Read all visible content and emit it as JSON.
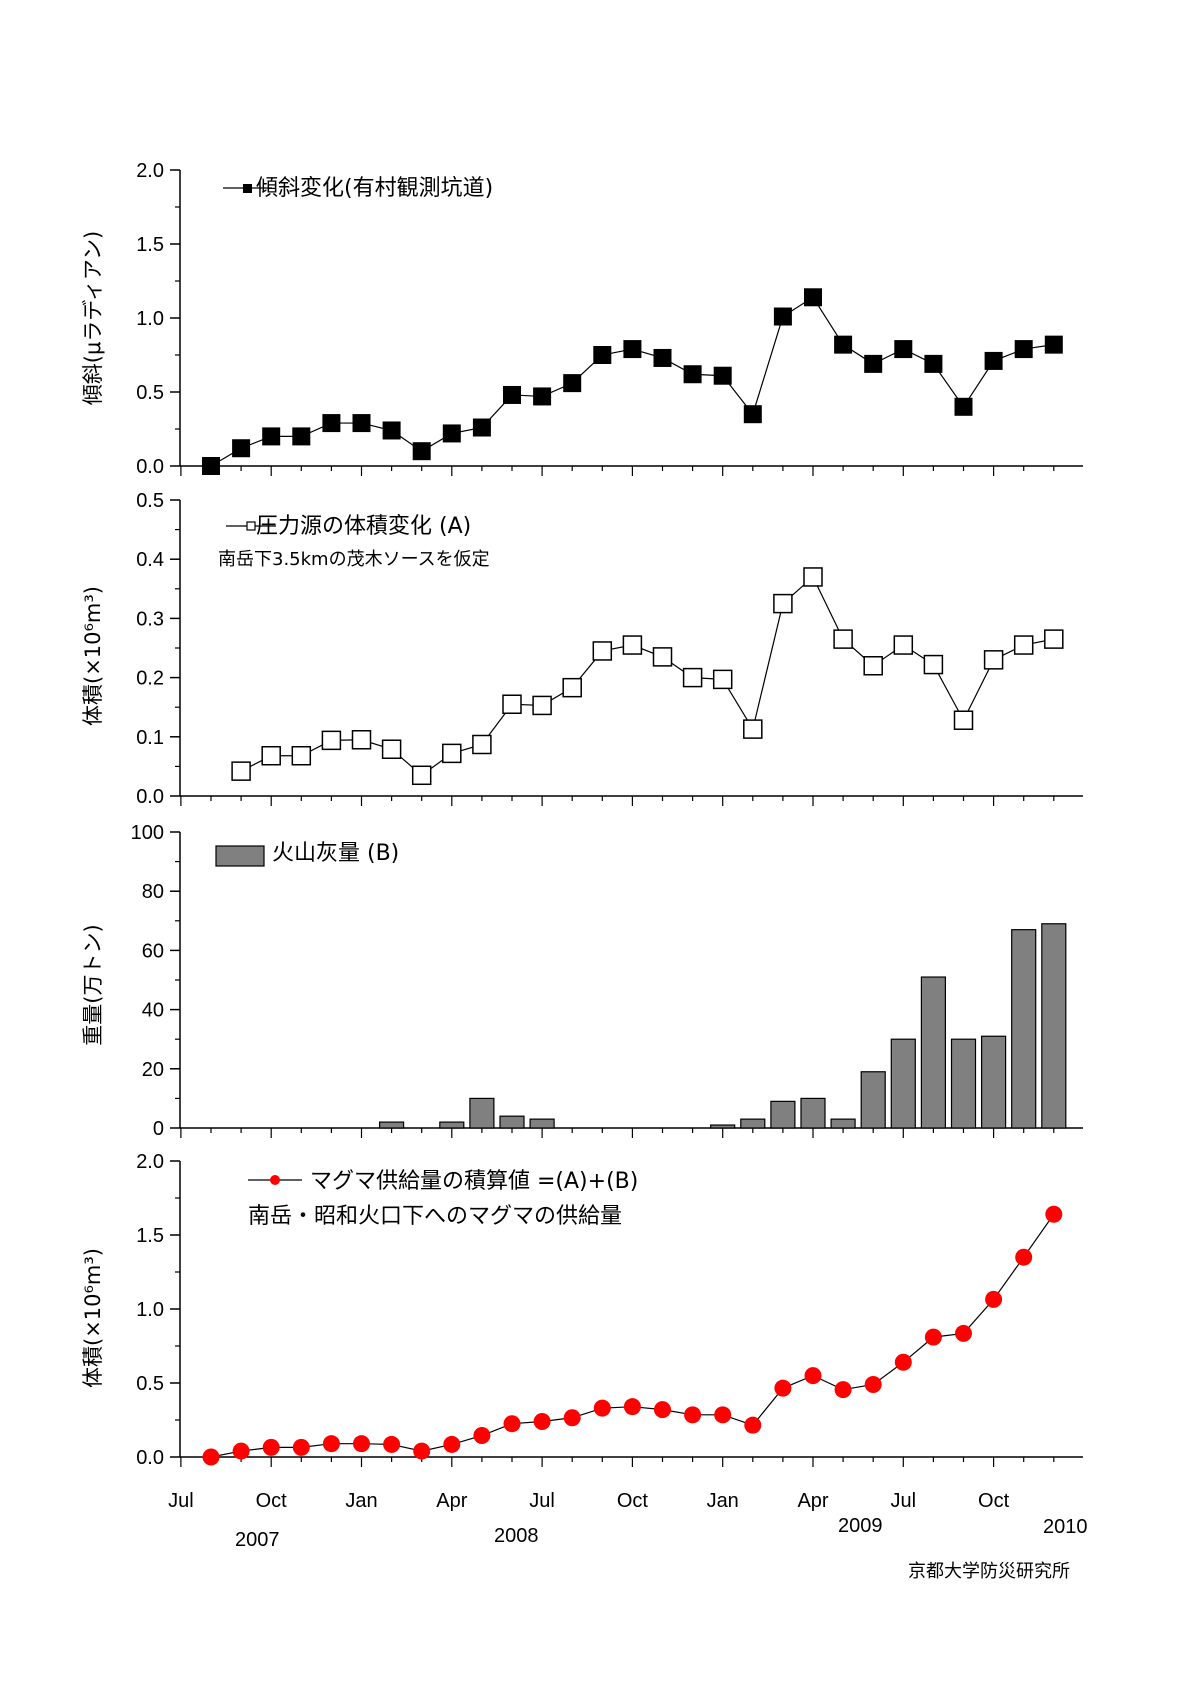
{
  "footer": "京都大学防災研究所",
  "time_axis": {
    "ticks": [
      "Jul",
      "Oct",
      "Jan",
      "Apr",
      "Jul",
      "Oct",
      "Jan",
      "Apr",
      "Jul",
      "Oct"
    ],
    "years": [
      "2007",
      "2008",
      "2009",
      "2010"
    ]
  },
  "chart_data": [
    {
      "id": "tilt",
      "type": "line",
      "ylabel": "傾斜(μラディアン)",
      "ylim": [
        0,
        2.0
      ],
      "yticks": [
        "0.0",
        "0.5",
        "1.0",
        "1.5",
        "2.0"
      ],
      "marker": "filled-square",
      "series": [
        {
          "name": "傾斜変化(有村観測坑道)",
          "values": [
            0.0,
            0.12,
            0.2,
            0.2,
            0.29,
            0.29,
            0.24,
            0.1,
            0.22,
            0.26,
            0.48,
            0.47,
            0.56,
            0.75,
            0.79,
            0.73,
            0.62,
            0.61,
            0.35,
            1.01,
            1.14,
            0.82,
            0.69,
            0.79,
            0.69,
            0.4,
            0.71,
            0.79,
            0.82
          ]
        }
      ]
    },
    {
      "id": "volume",
      "type": "line",
      "ylabel": "体積(×10⁶m³)",
      "ylim": [
        0,
        0.5
      ],
      "yticks": [
        "0.0",
        "0.1",
        "0.2",
        "0.3",
        "0.4",
        "0.5"
      ],
      "marker": "open-square",
      "note": "南岳下3.5kmの茂木ソースを仮定",
      "series": [
        {
          "name": "圧力源の体積変化 (A)",
          "values": [
            null,
            0.042,
            0.068,
            0.068,
            0.094,
            0.095,
            0.079,
            0.035,
            0.072,
            0.087,
            0.155,
            0.153,
            0.183,
            0.245,
            0.255,
            0.235,
            0.2,
            0.197,
            0.113,
            0.325,
            0.37,
            0.265,
            0.22,
            0.255,
            0.222,
            0.128,
            0.23,
            0.255,
            0.265
          ]
        }
      ]
    },
    {
      "id": "ash",
      "type": "bar",
      "ylabel": "重量(万トン)",
      "ylim": [
        0,
        100
      ],
      "yticks": [
        "0",
        "20",
        "40",
        "60",
        "80",
        "100"
      ],
      "color": "#808080",
      "series": [
        {
          "name": "火山灰量 (B)",
          "values": [
            0,
            0,
            0,
            0,
            0,
            0,
            2,
            0,
            2,
            10,
            4,
            3,
            0,
            0,
            0,
            0,
            0,
            1,
            3,
            9,
            10,
            3,
            19,
            30,
            51,
            30,
            31,
            67,
            69
          ]
        }
      ]
    },
    {
      "id": "magma",
      "type": "line",
      "ylabel": "体積(×10⁶m³)",
      "ylim": [
        0,
        2.0
      ],
      "yticks": [
        "0.0",
        "0.5",
        "1.0",
        "1.5",
        "2.0"
      ],
      "marker": "red-circle",
      "color": "#ff0000",
      "note": "南岳・昭和火口下へのマグマの供給量",
      "series": [
        {
          "name": "マグマ供給量の積算値 =(A)+(B)",
          "values": [
            0.0,
            0.04,
            0.065,
            0.065,
            0.09,
            0.09,
            0.085,
            0.04,
            0.085,
            0.145,
            0.225,
            0.24,
            0.265,
            0.33,
            0.34,
            0.32,
            0.285,
            0.285,
            0.215,
            0.465,
            0.55,
            0.455,
            0.49,
            0.64,
            0.81,
            0.835,
            1.065,
            1.35,
            1.64
          ]
        }
      ]
    }
  ]
}
